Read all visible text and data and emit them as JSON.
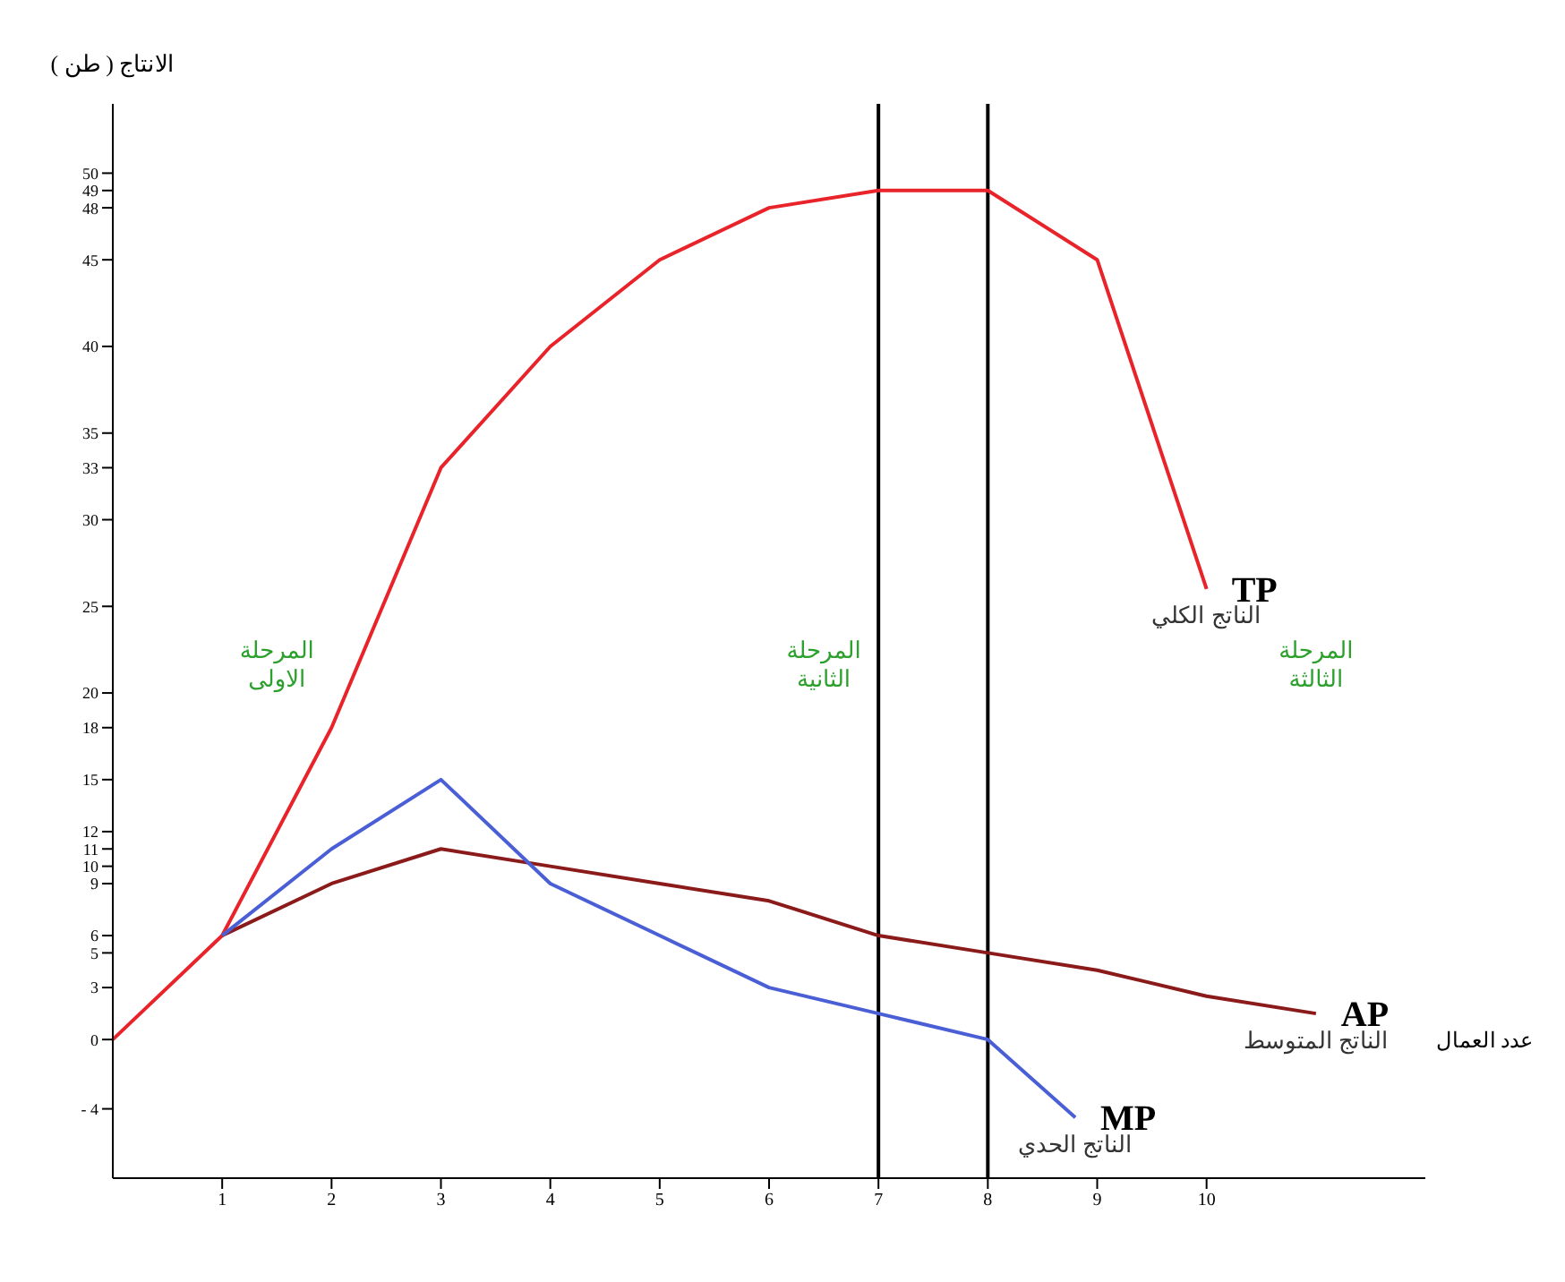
{
  "chart_data": {
    "type": "line",
    "xlabel": "عدد العمال",
    "ylabel": "الانتاج ( طن )",
    "xlim": [
      0,
      12
    ],
    "xticks": [
      1,
      2,
      3,
      4,
      5,
      6,
      7,
      8,
      9,
      10
    ],
    "ylim": [
      -8,
      54
    ],
    "yticks": [
      {
        "value": -4,
        "label": "- 4"
      },
      0,
      3,
      5,
      6,
      9,
      10,
      11,
      12,
      15,
      18,
      20,
      25,
      30,
      33,
      35,
      40,
      45,
      48,
      49,
      50
    ],
    "marker": "none",
    "line_style": "solid",
    "series": [
      {
        "name": "TP",
        "color": "#e8232a",
        "x": [
          0,
          1,
          2,
          3,
          4,
          5,
          6,
          7,
          8,
          9,
          10
        ],
        "values": [
          0,
          6,
          18,
          33,
          40,
          45,
          48,
          49,
          49,
          45,
          26
        ]
      },
      {
        "name": "AP",
        "color": "#8b1a1a",
        "x": [
          1,
          2,
          3,
          4,
          5,
          6,
          7,
          8,
          9,
          10,
          11
        ],
        "values": [
          6,
          9,
          11,
          10,
          9,
          8,
          6,
          5,
          4,
          2.5,
          1.5
        ]
      },
      {
        "name": "MP",
        "color": "#4a5fd6",
        "x": [
          1,
          2,
          3,
          4,
          5,
          6,
          7,
          8,
          8.8
        ],
        "values": [
          6,
          11,
          15,
          9,
          6,
          3,
          1.5,
          0,
          -4.5
        ]
      }
    ],
    "ref_lines": [
      {
        "axis": "x",
        "value": 7,
        "color": "#000000",
        "line_style": "solid"
      },
      {
        "axis": "x",
        "value": 8,
        "color": "#000000",
        "line_style": "solid"
      }
    ],
    "annotations": [
      {
        "text": "الناتج الكلي",
        "x": 10,
        "y": 26
      },
      {
        "text": "الناتج المتوسط",
        "x": 11,
        "y": 1.5
      },
      {
        "text": "الناتج الحدي",
        "x": 8.8,
        "y": -4.5
      },
      "المرحلة الاولى",
      "المرحلة الثانية",
      "المرحلة الثالثة"
    ]
  }
}
